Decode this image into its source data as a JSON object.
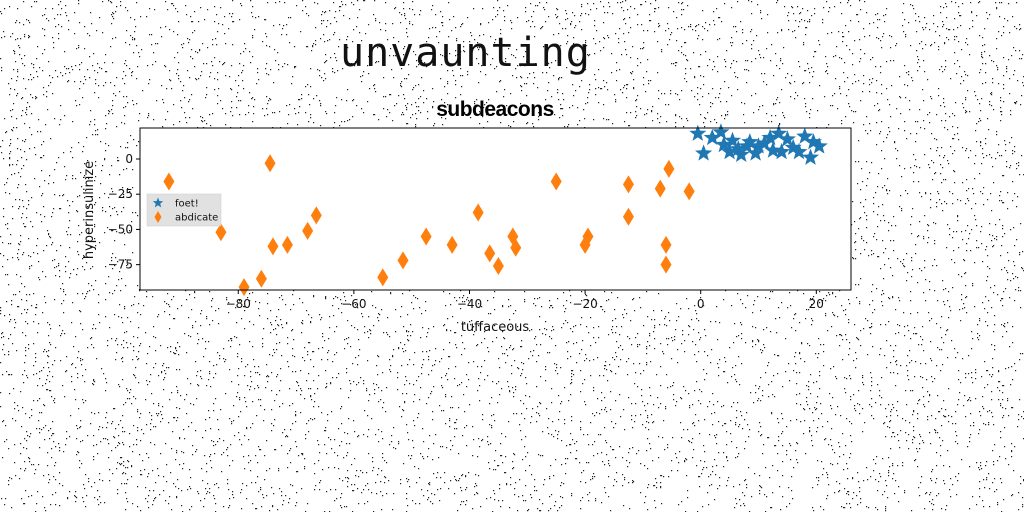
{
  "page_title": "unvaunting",
  "chart_data": {
    "type": "scatter",
    "title": "subdeacons",
    "xlabel": "tuffaceous",
    "ylabel": "hyperinsulinize",
    "xlim": [
      -97,
      26
    ],
    "ylim": [
      -93,
      22
    ],
    "xticks": [
      -80,
      -60,
      -40,
      -20,
      0,
      20
    ],
    "xtick_labels": [
      "−80",
      "−60",
      "−40",
      "−20",
      "0",
      "20"
    ],
    "yticks": [
      0,
      -25,
      -50,
      -75
    ],
    "ytick_labels": [
      "0",
      "−25",
      "−50",
      "−75"
    ],
    "grid": false,
    "legend": "left",
    "series": [
      {
        "name": "foet!",
        "marker": "star",
        "color": "#1f77b4",
        "points": [
          [
            -0.5,
            18
          ],
          [
            0.5,
            4
          ],
          [
            2,
            15
          ],
          [
            3.5,
            19
          ],
          [
            4,
            10
          ],
          [
            5,
            5
          ],
          [
            5.5,
            13
          ],
          [
            6.5,
            7
          ],
          [
            7,
            3
          ],
          [
            8,
            9
          ],
          [
            8.5,
            12
          ],
          [
            9.5,
            4
          ],
          [
            10,
            9
          ],
          [
            11,
            11
          ],
          [
            12,
            15
          ],
          [
            12.5,
            6
          ],
          [
            13.5,
            18
          ],
          [
            14,
            5
          ],
          [
            15,
            14
          ],
          [
            16,
            8
          ],
          [
            17,
            5
          ],
          [
            18,
            16
          ],
          [
            19,
            1
          ],
          [
            19.5,
            12
          ],
          [
            20.5,
            9
          ]
        ]
      },
      {
        "name": "abdicate",
        "marker": "thin_diamond",
        "color": "#ff7f0e",
        "points": [
          [
            -92,
            -16
          ],
          [
            -83,
            -52
          ],
          [
            -79,
            -91
          ],
          [
            -76,
            -85
          ],
          [
            -74.5,
            -3
          ],
          [
            -74,
            -62
          ],
          [
            -71.5,
            -61
          ],
          [
            -68,
            -51
          ],
          [
            -66.5,
            -40
          ],
          [
            -55,
            -84
          ],
          [
            -51.5,
            -72
          ],
          [
            -47.5,
            -55
          ],
          [
            -43,
            -61
          ],
          [
            -38.5,
            -38
          ],
          [
            -36.5,
            -67
          ],
          [
            -35,
            -76
          ],
          [
            -32.5,
            -55
          ],
          [
            -32,
            -63
          ],
          [
            -25,
            -16
          ],
          [
            -20,
            -61
          ],
          [
            -19.5,
            -55
          ],
          [
            -12.5,
            -18
          ],
          [
            -12.5,
            -41
          ],
          [
            -7,
            -21
          ],
          [
            -6,
            -75
          ],
          [
            -6,
            -61
          ],
          [
            -5.5,
            -7
          ],
          [
            -2,
            -23
          ]
        ]
      }
    ]
  }
}
